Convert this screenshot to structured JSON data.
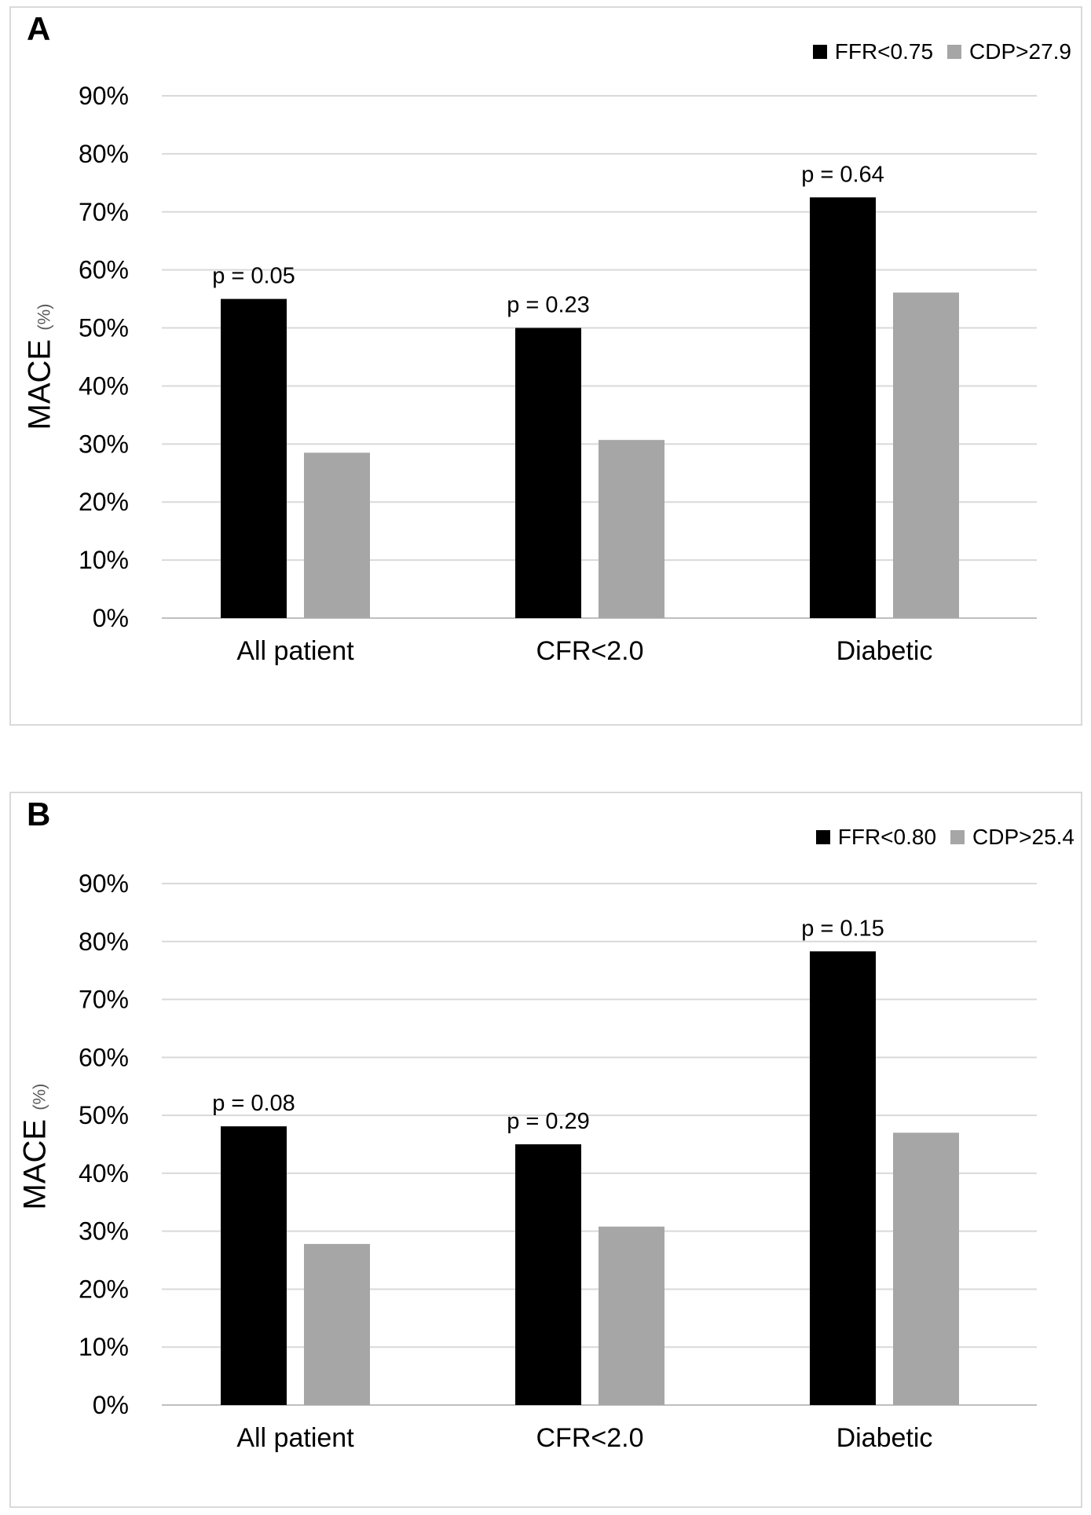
{
  "chart_data": [
    {
      "panel": "A",
      "type": "bar",
      "categories": [
        "All patient",
        "CFR<2.0",
        "Diabetic"
      ],
      "series": [
        {
          "name": "FFR<0.75",
          "color": "#000000",
          "values": [
            55,
            50,
            72.5
          ]
        },
        {
          "name": "CDP>27.9",
          "color": "#a6a6a6",
          "values": [
            28.5,
            30.7,
            56.1
          ]
        }
      ],
      "annotations": [
        "p = 0.05",
        "p = 0.23",
        "p = 0.64"
      ],
      "ylabel": "MACE",
      "ylabel_unit": "(%)",
      "ylim": [
        0,
        90
      ],
      "yticks": [
        "0%",
        "10%",
        "20%",
        "30%",
        "40%",
        "50%",
        "60%",
        "70%",
        "80%",
        "90%"
      ],
      "grid": true,
      "legend_position": "top-right"
    },
    {
      "panel": "B",
      "type": "bar",
      "categories": [
        "All patient",
        "CFR<2.0",
        "Diabetic"
      ],
      "series": [
        {
          "name": "FFR<0.80",
          "color": "#000000",
          "values": [
            48.1,
            45.0,
            78.3
          ]
        },
        {
          "name": "CDP>25.4",
          "color": "#a6a6a6",
          "values": [
            27.8,
            30.8,
            47.0
          ]
        }
      ],
      "annotations": [
        "p = 0.08",
        "p = 0.29",
        "p = 0.15"
      ],
      "ylabel": "MACE",
      "ylabel_unit": "(%)",
      "ylim": [
        0,
        90
      ],
      "yticks": [
        "0%",
        "10%",
        "20%",
        "30%",
        "40%",
        "50%",
        "60%",
        "70%",
        "80%",
        "90%"
      ],
      "grid": true,
      "legend_position": "top-right"
    }
  ]
}
